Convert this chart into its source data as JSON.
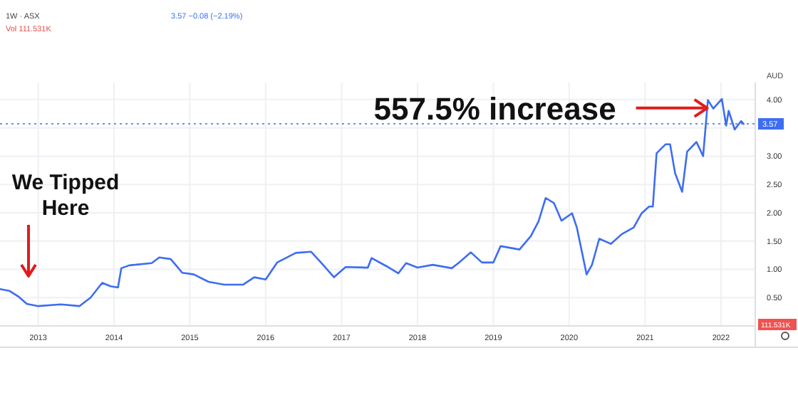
{
  "chart_data": {
    "type": "line",
    "title": "1W · ASX",
    "subtitle": "3.57 −0.08 (−2.19%)",
    "x": [
      "2012-07-01",
      "2012-08-15",
      "2012-10-01",
      "2012-11-07",
      "2013-01-01",
      "2013-04-20",
      "2013-07-18",
      "2013-09-10",
      "2013-11-05",
      "2013-12-15",
      "2014-01-20",
      "2014-02-05",
      "2014-03-15",
      "2014-07-01",
      "2014-08-07",
      "2014-10-01",
      "2014-11-25",
      "2015-01-20",
      "2015-04-01",
      "2015-06-15",
      "2015-09-15",
      "2015-11-07",
      "2016-01-01",
      "2016-02-25",
      "2016-05-25",
      "2016-08-07",
      "2016-10-01",
      "2016-11-25",
      "2017-01-20",
      "2017-05-07",
      "2017-05-25",
      "2017-08-07",
      "2017-10-01",
      "2017-11-07",
      "2018-01-01",
      "2018-03-15",
      "2018-06-15",
      "2018-07-20",
      "2018-09-15",
      "2018-11-07",
      "2019-01-01",
      "2019-02-05",
      "2019-05-07",
      "2019-07-01",
      "2019-08-07",
      "2019-09-10",
      "2019-10-20",
      "2019-11-25",
      "2020-01-15",
      "2020-02-07",
      "2020-03-25",
      "2020-04-20",
      "2020-05-25",
      "2020-07-20",
      "2020-09-10",
      "2020-11-07",
      "2020-12-15",
      "2021-01-20",
      "2021-02-07",
      "2021-02-25",
      "2021-04-10",
      "2021-05-01",
      "2021-05-25",
      "2021-06-28",
      "2021-07-22",
      "2021-09-05",
      "2021-10-07",
      "2021-10-30",
      "2021-11-25",
      "2022-01-05",
      "2022-01-26",
      "2022-02-07",
      "2022-03-08",
      "2022-04-08",
      "2022-04-20"
    ],
    "series": [
      {
        "color": "#3d6df2",
        "values": [
          0.65,
          0.62,
          0.51,
          0.39,
          0.35,
          0.38,
          0.35,
          0.5,
          0.76,
          0.7,
          0.68,
          1.02,
          1.07,
          1.11,
          1.21,
          1.18,
          0.94,
          0.91,
          0.78,
          0.73,
          0.73,
          0.86,
          0.82,
          1.12,
          1.29,
          1.31,
          1.09,
          0.86,
          1.04,
          1.03,
          1.2,
          1.05,
          0.93,
          1.11,
          1.03,
          1.08,
          1.02,
          1.12,
          1.3,
          1.12,
          1.12,
          1.41,
          1.35,
          1.59,
          1.85,
          2.26,
          2.17,
          1.86,
          1.99,
          1.74,
          0.91,
          1.08,
          1.54,
          1.45,
          1.62,
          1.74,
          1.99,
          2.11,
          2.11,
          3.05,
          3.21,
          3.21,
          2.7,
          2.37,
          3.08,
          3.25,
          3.0,
          3.99,
          3.84,
          4.01,
          3.54,
          3.8,
          3.47,
          3.62,
          3.57
        ]
      }
    ],
    "xlim": [
      "2012-07-01",
      "2022-06-15"
    ],
    "xticks": [
      {
        "value": "2013-01-01",
        "label": "2013"
      },
      {
        "value": "2014-01-01",
        "label": "2014"
      },
      {
        "value": "2015-01-01",
        "label": "2015"
      },
      {
        "value": "2016-01-01",
        "label": "2016"
      },
      {
        "value": "2017-01-01",
        "label": "2017"
      },
      {
        "value": "2018-01-01",
        "label": "2018"
      },
      {
        "value": "2019-01-01",
        "label": "2019"
      },
      {
        "value": "2020-01-01",
        "label": "2020"
      },
      {
        "value": "2021-01-01",
        "label": "2021"
      },
      {
        "value": "2022-01-01",
        "label": "2022"
      }
    ],
    "ylim": [
      0,
      4.3
    ],
    "yticks": [
      {
        "value": 0.5,
        "label": "0.50"
      },
      {
        "value": 1,
        "label": "1.00"
      },
      {
        "value": 1.5,
        "label": "1.50"
      },
      {
        "value": 2,
        "label": "2.00"
      },
      {
        "value": 2.5,
        "label": "2.50"
      },
      {
        "value": 3,
        "label": "3.00"
      },
      {
        "value": 3.5,
        "label": null
      },
      {
        "value": 4,
        "label": "4.00"
      }
    ],
    "ref_lines": [
      {
        "axis": "y",
        "value": 3.57,
        "label": "3.57",
        "color": "#3d6df2",
        "line_style": "dotted"
      }
    ],
    "grid": true,
    "line_style": "solid",
    "marker": "none",
    "annotations": [
      "AUD",
      "Vol 111.531K",
      "111.531K",
      "We Tipped Here",
      {
        "text": "557.5% increase",
        "x": "2021-10-27",
        "y": 3.85
      }
    ]
  }
}
